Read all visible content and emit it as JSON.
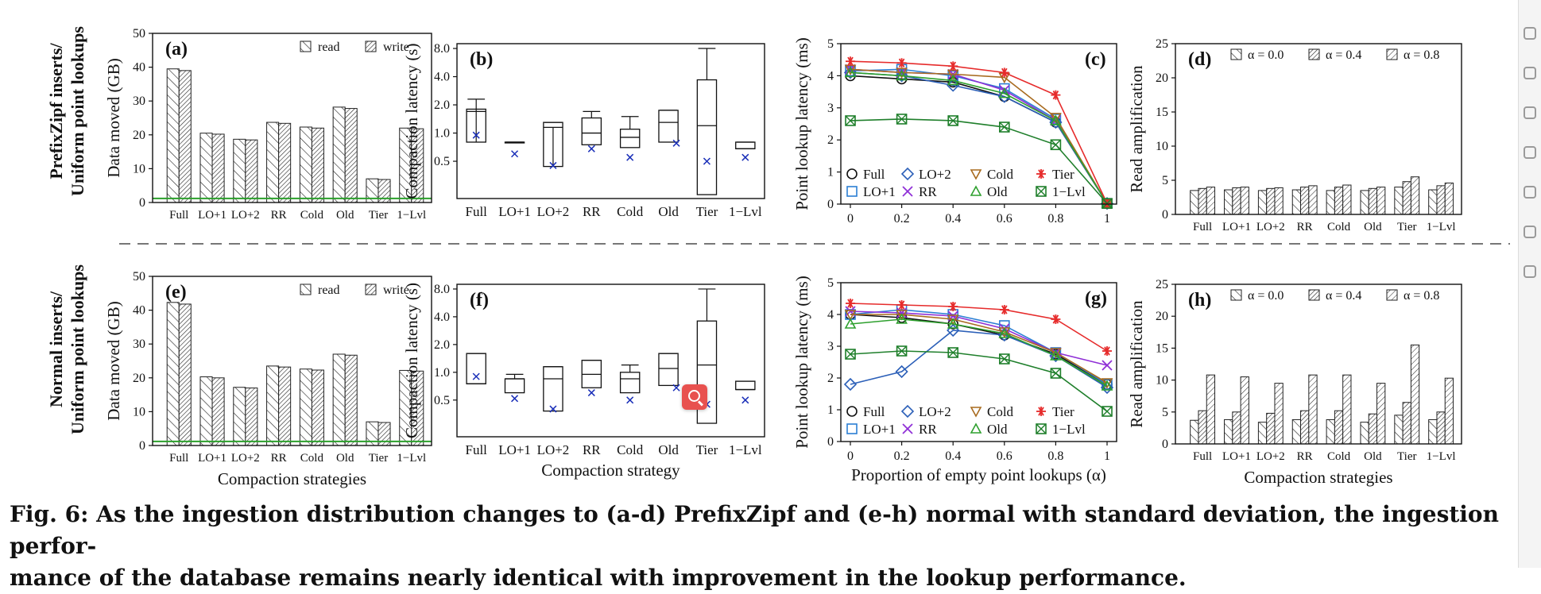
{
  "rows": [
    {
      "label_lines": [
        "PrefixZipf inserts/",
        "Uniform point lookups"
      ]
    },
    {
      "label_lines": [
        "Normal inserts/",
        "Uniform point lookups"
      ]
    }
  ],
  "caption": {
    "line1": "Fig. 6: As the ingestion distribution changes to (a-d) PrefixZipf and (e-h) normal with standard deviation, the ingestion perfor-",
    "line2": "mance of the database remains nearly identical with improvement in the lookup performance."
  },
  "chart_data": [
    {
      "panel": "(a)",
      "type": "bar",
      "categories": [
        "Full",
        "LO+1",
        "LO+2",
        "RR",
        "Cold",
        "Old",
        "Tier",
        "1−Lvl"
      ],
      "series": [
        {
          "name": "read",
          "values": [
            39.5,
            20.5,
            18.7,
            23.7,
            22.3,
            28.2,
            7.0,
            22.0
          ]
        },
        {
          "name": "write",
          "values": [
            39.0,
            20.2,
            18.5,
            23.4,
            22.0,
            27.8,
            6.8,
            21.8
          ]
        }
      ],
      "ylabel": "Data moved (GB)",
      "ylim": [
        0,
        50
      ],
      "yticks": [
        0,
        10,
        20,
        30,
        40,
        50
      ],
      "reference_line": 1.2,
      "legend": "top-right"
    },
    {
      "panel": "(b)",
      "type": "box",
      "categories": [
        "Full",
        "LO+1",
        "LO+2",
        "RR",
        "Cold",
        "Old",
        "Tier",
        "1−Lvl"
      ],
      "boxes": [
        {
          "wlo": 1.8,
          "q1": 0.8,
          "med": 1.7,
          "q3": 1.8,
          "whi": 2.3,
          "mean": 0.95
        },
        {
          "wlo": 0.8,
          "q1": 0.8,
          "med": 0.8,
          "q3": 0.8,
          "whi": 0.8,
          "mean": 0.6
        },
        {
          "wlo": 1.15,
          "q1": 0.44,
          "med": 1.15,
          "q3": 1.3,
          "whi": 1.3,
          "mean": 0.45
        },
        {
          "wlo": 0.75,
          "q1": 0.75,
          "med": 1.0,
          "q3": 1.45,
          "whi": 1.7,
          "mean": 0.68
        },
        {
          "wlo": 0.7,
          "q1": 0.7,
          "med": 0.9,
          "q3": 1.1,
          "whi": 1.5,
          "mean": 0.55
        },
        {
          "wlo": 0.8,
          "q1": 0.8,
          "med": 1.3,
          "q3": 1.75,
          "whi": 1.75,
          "mean": 0.78
        },
        {
          "wlo": 0.22,
          "q1": 0.22,
          "med": 1.2,
          "q3": 3.7,
          "whi": 8.0,
          "mean": 0.5
        },
        {
          "wlo": 0.68,
          "q1": 0.68,
          "med": 0.68,
          "q3": 0.8,
          "whi": 0.8,
          "mean": 0.55
        }
      ],
      "ylabel": "Compaction latency (s)",
      "yscale": "log",
      "ylim": [
        0.2,
        9.0
      ],
      "yticks": [
        0.5,
        1.0,
        2.0,
        4.0,
        8.0
      ],
      "ytick_labels": [
        "0.5",
        "1.0",
        "2.0",
        "4.0",
        "8.0"
      ]
    },
    {
      "panel": "(c)",
      "type": "line",
      "x": [
        0,
        0.2,
        0.4,
        0.6,
        0.8,
        1
      ],
      "series": [
        {
          "name": "Full",
          "values": [
            4.0,
            3.9,
            3.8,
            3.35,
            2.55,
            0.02
          ]
        },
        {
          "name": "LO+1",
          "values": [
            4.15,
            4.2,
            4.0,
            3.6,
            2.65,
            0.02
          ]
        },
        {
          "name": "LO+2",
          "values": [
            4.1,
            4.0,
            3.7,
            3.35,
            2.55,
            0.02
          ]
        },
        {
          "name": "RR",
          "values": [
            4.2,
            4.1,
            4.05,
            3.55,
            2.6,
            0.02
          ]
        },
        {
          "name": "Cold",
          "values": [
            4.2,
            4.1,
            4.05,
            3.95,
            2.7,
            0.02
          ]
        },
        {
          "name": "Old",
          "values": [
            4.1,
            4.0,
            3.85,
            3.45,
            2.6,
            0.02
          ]
        },
        {
          "name": "Tier",
          "values": [
            4.45,
            4.4,
            4.3,
            4.1,
            3.4,
            0.02
          ]
        },
        {
          "name": "1−Lvl",
          "values": [
            2.6,
            2.65,
            2.6,
            2.4,
            1.85,
            0.02
          ]
        }
      ],
      "ylabel": "Point lookup latency (ms)",
      "ylim": [
        0,
        5
      ],
      "yticks": [
        0,
        1,
        2,
        3,
        4,
        5
      ],
      "xticks": [
        0,
        0.2,
        0.4,
        0.6,
        0.8,
        1
      ],
      "xtick_labels": [
        "0",
        "0.2",
        "0.4",
        "0.6",
        "0.8",
        "1"
      ],
      "legend": "bottom-left"
    },
    {
      "panel": "(d)",
      "type": "bar",
      "categories": [
        "Full",
        "LO+1",
        "LO+2",
        "RR",
        "Cold",
        "Old",
        "Tier",
        "1−Lvl"
      ],
      "series": [
        {
          "name": "α = 0.0",
          "values": [
            3.5,
            3.6,
            3.5,
            3.6,
            3.5,
            3.5,
            4.0,
            3.6
          ]
        },
        {
          "name": "α = 0.4",
          "values": [
            3.8,
            3.9,
            3.8,
            4.0,
            4.0,
            3.8,
            4.8,
            4.2
          ]
        },
        {
          "name": "α = 0.8",
          "values": [
            4.0,
            4.0,
            3.9,
            4.2,
            4.3,
            4.0,
            5.5,
            4.6
          ]
        }
      ],
      "ylabel": "Read amplification",
      "ylim": [
        0,
        25
      ],
      "yticks": [
        0,
        5,
        10,
        15,
        20,
        25
      ],
      "legend": "top-right"
    },
    {
      "panel": "(e)",
      "type": "bar",
      "categories": [
        "Full",
        "LO+1",
        "LO+2",
        "RR",
        "Cold",
        "Old",
        "Tier",
        "1−Lvl"
      ],
      "series": [
        {
          "name": "read",
          "values": [
            42.3,
            20.3,
            17.2,
            23.5,
            22.6,
            27.0,
            7.0,
            22.2
          ]
        },
        {
          "name": "write",
          "values": [
            41.8,
            20.0,
            17.0,
            23.2,
            22.3,
            26.7,
            6.8,
            22.0
          ]
        }
      ],
      "xlabel": "Compaction strategies",
      "ylabel": "Data moved (GB)",
      "ylim": [
        0,
        50
      ],
      "yticks": [
        0,
        10,
        20,
        30,
        40,
        50
      ],
      "reference_line": 1.2,
      "legend": "top-right"
    },
    {
      "panel": "(f)",
      "type": "box",
      "categories": [
        "Full",
        "LO+1",
        "LO+2",
        "RR",
        "Cold",
        "Old",
        "Tier",
        "1−Lvl"
      ],
      "boxes": [
        {
          "wlo": 0.75,
          "q1": 0.75,
          "med": 0.75,
          "q3": 1.6,
          "whi": 1.6,
          "mean": 0.9
        },
        {
          "wlo": 0.6,
          "q1": 0.6,
          "med": 0.85,
          "q3": 0.85,
          "whi": 0.95,
          "mean": 0.52
        },
        {
          "wlo": 0.38,
          "q1": 0.38,
          "med": 0.85,
          "q3": 1.15,
          "whi": 1.15,
          "mean": 0.4
        },
        {
          "wlo": 0.68,
          "q1": 0.68,
          "med": 0.95,
          "q3": 1.35,
          "whi": 1.35,
          "mean": 0.6
        },
        {
          "wlo": 0.6,
          "q1": 0.6,
          "med": 0.85,
          "q3": 1.0,
          "whi": 1.2,
          "mean": 0.5
        },
        {
          "wlo": 0.72,
          "q1": 0.72,
          "med": 1.1,
          "q3": 1.6,
          "whi": 1.6,
          "mean": 0.68
        },
        {
          "wlo": 0.28,
          "q1": 0.28,
          "med": 1.2,
          "q3": 3.6,
          "whi": 8.0,
          "mean": 0.45
        },
        {
          "wlo": 0.65,
          "q1": 0.65,
          "med": 0.65,
          "q3": 0.8,
          "whi": 0.8,
          "mean": 0.5
        }
      ],
      "xlabel": "Compaction strategy",
      "ylabel": "Compaction latency (s)",
      "yscale": "log",
      "ylim": [
        0.2,
        9.0
      ],
      "yticks": [
        0.5,
        1.0,
        2.0,
        4.0,
        8.0
      ],
      "ytick_labels": [
        "0.5",
        "1.0",
        "2.0",
        "4.0",
        "8.0"
      ]
    },
    {
      "panel": "(g)",
      "type": "line",
      "x": [
        0,
        0.2,
        0.4,
        0.6,
        0.8,
        1
      ],
      "series": [
        {
          "name": "Full",
          "values": [
            4.0,
            3.9,
            3.7,
            3.35,
            2.75,
            1.8
          ]
        },
        {
          "name": "LO+1",
          "values": [
            4.0,
            4.15,
            4.0,
            3.65,
            2.8,
            1.8
          ]
        },
        {
          "name": "LO+2",
          "values": [
            1.8,
            2.2,
            3.5,
            3.35,
            2.7,
            1.7
          ]
        },
        {
          "name": "RR",
          "values": [
            4.1,
            4.05,
            3.95,
            3.55,
            2.8,
            2.4
          ]
        },
        {
          "name": "Cold",
          "values": [
            4.0,
            4.0,
            3.85,
            3.45,
            2.8,
            1.85
          ]
        },
        {
          "name": "Old",
          "values": [
            3.7,
            3.85,
            3.7,
            3.4,
            2.7,
            1.75
          ]
        },
        {
          "name": "Tier",
          "values": [
            4.35,
            4.3,
            4.25,
            4.15,
            3.85,
            2.85
          ]
        },
        {
          "name": "1−Lvl",
          "values": [
            2.75,
            2.85,
            2.8,
            2.6,
            2.15,
            0.95
          ]
        }
      ],
      "xlabel": "Proportion of empty point lookups (α)",
      "ylabel": "Point lookup latency (ms)",
      "ylim": [
        0,
        5
      ],
      "yticks": [
        0,
        1,
        2,
        3,
        4,
        5
      ],
      "xticks": [
        0,
        0.2,
        0.4,
        0.6,
        0.8,
        1
      ],
      "xtick_labels": [
        "0",
        "0.2",
        "0.4",
        "0.6",
        "0.8",
        "1"
      ],
      "legend": "bottom-left"
    },
    {
      "panel": "(h)",
      "type": "bar",
      "categories": [
        "Full",
        "LO+1",
        "LO+2",
        "RR",
        "Cold",
        "Old",
        "Tier",
        "1−Lvl"
      ],
      "series": [
        {
          "name": "α = 0.0",
          "values": [
            3.7,
            3.8,
            3.4,
            3.8,
            3.8,
            3.4,
            4.5,
            3.8
          ]
        },
        {
          "name": "α = 0.4",
          "values": [
            5.2,
            5.0,
            4.8,
            5.2,
            5.2,
            4.7,
            6.5,
            5.0
          ]
        },
        {
          "name": "α = 0.8",
          "values": [
            10.8,
            10.5,
            9.5,
            10.8,
            10.8,
            9.5,
            15.5,
            10.3
          ]
        }
      ],
      "xlabel": "Compaction strategies",
      "ylabel": "Read amplification",
      "ylim": [
        0,
        25
      ],
      "yticks": [
        0,
        5,
        10,
        15,
        20,
        25
      ],
      "legend": "top-right"
    }
  ]
}
